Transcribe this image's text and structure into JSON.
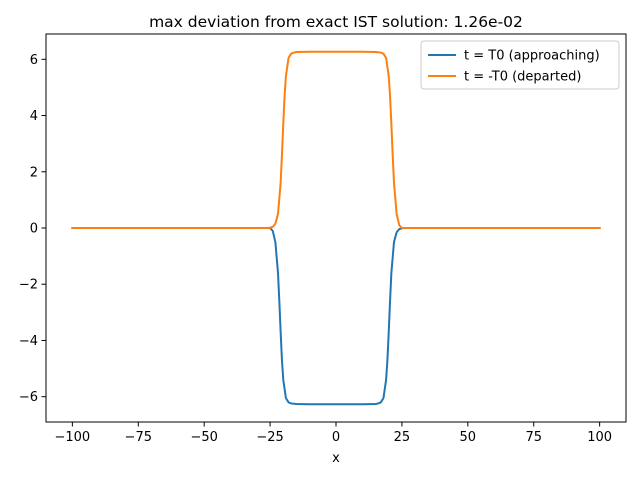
{
  "chart_data": {
    "type": "line",
    "title": "max deviation from exact IST solution: 1.26e-02",
    "xlabel": "x",
    "ylabel": "",
    "xlim": [
      -110,
      110
    ],
    "ylim": [
      -6.9,
      6.9
    ],
    "xticks": [
      -100,
      -75,
      -50,
      -25,
      0,
      25,
      50,
      75,
      100
    ],
    "xtick_labels": [
      "−100",
      "−75",
      "−50",
      "−25",
      "0",
      "25",
      "50",
      "75",
      "100"
    ],
    "yticks": [
      -6,
      -4,
      -2,
      0,
      2,
      4,
      6
    ],
    "ytick_labels": [
      "−6",
      "−4",
      "−2",
      "0",
      "2",
      "4",
      "6"
    ],
    "grid": false,
    "legend_position": "top-right",
    "series": [
      {
        "name": "t = T0 (approaching)",
        "color": "#1f77b4",
        "x": [
          -100,
          -50,
          -25,
          -24,
          -23,
          -22,
          -21.5,
          -21,
          -20.5,
          -20,
          -19,
          -18,
          -17,
          -15,
          -10,
          0,
          10,
          15,
          16,
          17,
          18,
          19,
          19.5,
          20,
          20.5,
          21,
          22,
          23,
          24,
          25,
          26,
          50,
          100
        ],
        "y": [
          0,
          0,
          0,
          -0.1,
          -0.5,
          -1.6,
          -2.6,
          -3.7,
          -4.7,
          -5.4,
          -6.05,
          -6.2,
          -6.24,
          -6.26,
          -6.27,
          -6.27,
          -6.27,
          -6.26,
          -6.24,
          -6.2,
          -6.05,
          -5.4,
          -4.7,
          -3.7,
          -2.6,
          -1.6,
          -0.5,
          -0.15,
          -0.04,
          -0.01,
          0,
          0,
          0
        ]
      },
      {
        "name": "t = -T0 (departed)",
        "color": "#ff7f0e",
        "x": [
          -100,
          -50,
          -26,
          -25,
          -24,
          -23,
          -22,
          -21,
          -20.5,
          -20,
          -19.5,
          -19,
          -18,
          -17,
          -16,
          -15,
          -10,
          0,
          10,
          15,
          17,
          18,
          19,
          20,
          20.5,
          21,
          21.5,
          22,
          23,
          24,
          25,
          50,
          100
        ],
        "y": [
          0,
          0,
          0,
          0.01,
          0.04,
          0.15,
          0.5,
          1.6,
          2.6,
          3.7,
          4.7,
          5.4,
          6.05,
          6.2,
          6.24,
          6.26,
          6.27,
          6.27,
          6.27,
          6.26,
          6.24,
          6.2,
          6.05,
          5.4,
          4.7,
          3.7,
          2.6,
          1.6,
          0.5,
          0.1,
          0,
          0,
          0
        ]
      }
    ]
  }
}
